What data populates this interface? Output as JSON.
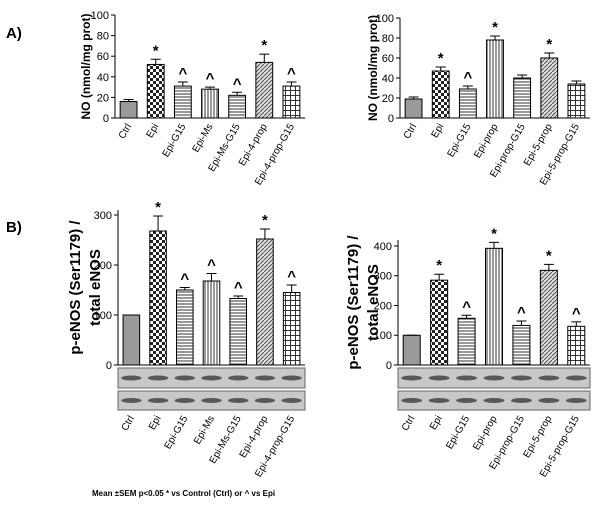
{
  "panel_labels": [
    "A)",
    "B)"
  ],
  "footnote": "Mean ±SEM p<0.05 * vs Control (Ctrl) or ^ vs Epi",
  "chart_data": [
    {
      "type": "bar",
      "ylabel": [
        "NO (nmol/mg prot)"
      ],
      "categories": [
        "Ctrl",
        "Epi",
        "Epi-G15",
        "Epi-Ms",
        "Epi-Ms-G15",
        "Epi-4-prop",
        "Epi-4-prop-G15"
      ],
      "values": [
        16,
        52,
        31,
        28,
        22,
        54,
        31
      ],
      "errors": [
        2,
        5,
        4,
        2,
        3,
        8,
        4
      ],
      "annotations": [
        null,
        "*",
        "^",
        "^",
        "^",
        "*",
        "^"
      ],
      "ylim": [
        0,
        100
      ],
      "yticks": [
        0,
        20,
        40,
        60,
        80,
        100
      ]
    },
    {
      "type": "bar",
      "ylabel": [
        "NO (nmol/mg prot)"
      ],
      "categories": [
        "Ctrl",
        "Epi",
        "Epi-G15",
        "Epi-prop",
        "Epi-prop-G15",
        "Epi-5-prop",
        "Epi-5-prop-G15"
      ],
      "values": [
        19,
        47,
        29,
        78,
        40,
        60,
        34
      ],
      "errors": [
        2,
        4,
        3,
        4,
        3,
        5,
        3
      ],
      "annotations": [
        null,
        "*",
        "^",
        "*",
        null,
        "*",
        null
      ],
      "ylim": [
        0,
        100
      ],
      "yticks": [
        0,
        20,
        40,
        60,
        80,
        100
      ]
    },
    {
      "type": "bar",
      "ylabel": [
        "p-eNOS (Ser1179) /",
        "total eNOS"
      ],
      "categories": [
        "Ctrl",
        "Epi",
        "Epi-G15",
        "Epi-Ms",
        "Epi-Ms-G15",
        "Epi-4-prop",
        "Epi-4-prop-G15"
      ],
      "values": [
        100,
        268,
        150,
        168,
        133,
        252,
        145
      ],
      "errors": [
        0,
        30,
        5,
        15,
        5,
        20,
        15
      ],
      "annotations": [
        null,
        "*",
        "^",
        "^",
        "^",
        "*",
        "^"
      ],
      "ylim": [
        0,
        310
      ],
      "yticks": [
        0,
        100,
        200,
        300
      ]
    },
    {
      "type": "bar",
      "ylabel": [
        "p-eNOS (Ser1179) /",
        "total eNOS"
      ],
      "categories": [
        "Ctrl",
        "Epi",
        "Epi-G15",
        "Epi-prop",
        "Epi-prop-G15",
        "Epi-5-prop",
        "Epi-5-prop-G15"
      ],
      "values": [
        100,
        285,
        157,
        392,
        133,
        318,
        130
      ],
      "errors": [
        0,
        20,
        10,
        20,
        15,
        20,
        15
      ],
      "annotations": [
        null,
        "*",
        "^",
        "*",
        "^",
        "*",
        "^"
      ],
      "ylim": [
        0,
        420
      ],
      "yticks": [
        0,
        100,
        200,
        300,
        400
      ]
    }
  ]
}
